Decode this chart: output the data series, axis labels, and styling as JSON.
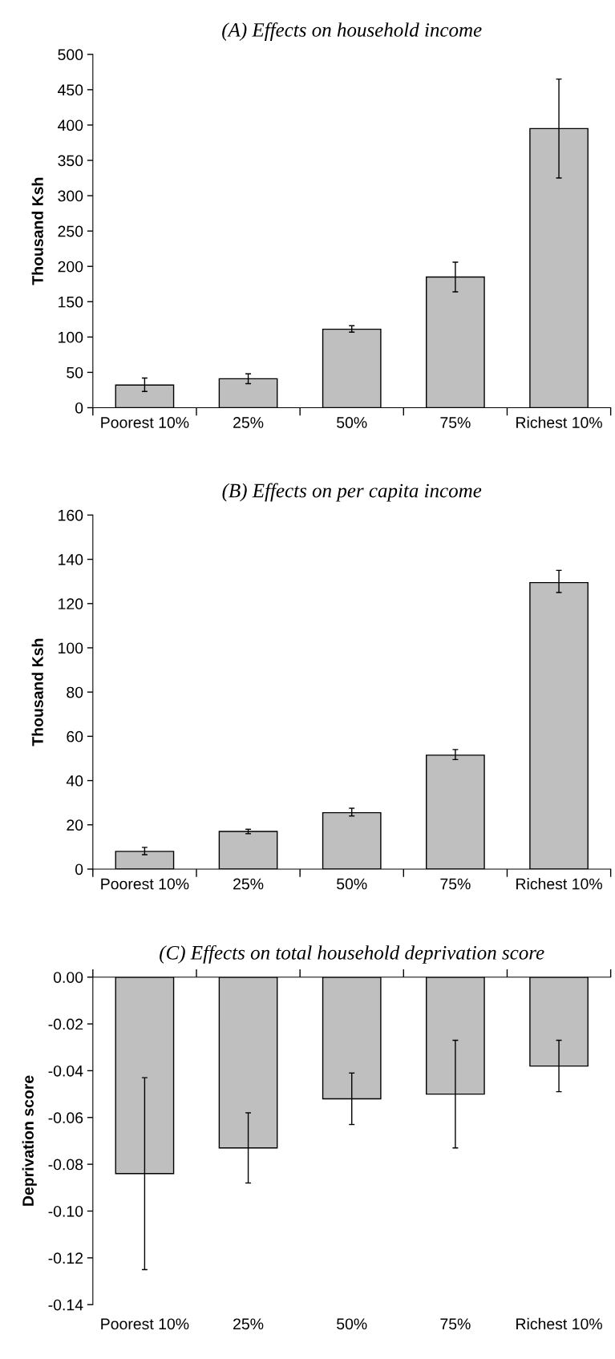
{
  "chart_data": [
    {
      "type": "bar",
      "title": "(A) Effects on household income",
      "ylabel": "Thousand Ksh",
      "categories": [
        "Poorest 10%",
        "25%",
        "50%",
        "75%",
        "Richest 10%"
      ],
      "values": [
        32,
        41,
        111,
        185,
        395
      ],
      "errors": [
        [
          23,
          42
        ],
        [
          34,
          48
        ],
        [
          107,
          116
        ],
        [
          164,
          206
        ],
        [
          325,
          465
        ]
      ],
      "color": "#bfbfbf",
      "ylim": [
        0,
        500
      ],
      "yticks": [
        0,
        50,
        100,
        150,
        200,
        250,
        300,
        350,
        400,
        450,
        500
      ]
    },
    {
      "type": "bar",
      "title": "(B) Effects on per capita income",
      "ylabel": "Thousand Ksh",
      "categories": [
        "Poorest 10%",
        "25%",
        "50%",
        "75%",
        "Richest 10%"
      ],
      "values": [
        8,
        17,
        25.5,
        51.5,
        129.5
      ],
      "errors": [
        [
          6.5,
          9.8
        ],
        [
          16,
          18
        ],
        [
          24,
          27.5
        ],
        [
          49.5,
          54
        ],
        [
          125,
          135
        ]
      ],
      "color": "#bfbfbf",
      "ylim": [
        0,
        160
      ],
      "yticks": [
        0,
        20,
        40,
        60,
        80,
        100,
        120,
        140,
        160
      ]
    },
    {
      "type": "bar",
      "title": "(C) Effects on total household deprivation score",
      "ylabel": "Deprivation score",
      "categories": [
        "Poorest 10%",
        "25%",
        "50%",
        "75%",
        "Richest 10%"
      ],
      "values": [
        -0.084,
        -0.073,
        -0.052,
        -0.05,
        -0.038
      ],
      "errors": [
        [
          -0.125,
          -0.043
        ],
        [
          -0.088,
          -0.058
        ],
        [
          -0.063,
          -0.041
        ],
        [
          -0.073,
          -0.027
        ],
        [
          -0.049,
          -0.027
        ]
      ],
      "color": "#bfbfbf",
      "ylim": [
        -0.14,
        0
      ],
      "yticks": [
        {
          "value": 0,
          "label": "0.00"
        },
        {
          "value": -0.02,
          "label": "-0.02"
        },
        {
          "value": -0.04,
          "label": "-0.04"
        },
        {
          "value": -0.06,
          "label": "-0.06"
        },
        {
          "value": -0.08,
          "label": "-0.08"
        },
        {
          "value": -0.1,
          "label": "-0.10"
        },
        {
          "value": -0.12,
          "label": "-0.12"
        },
        {
          "value": -0.14,
          "label": "-0.14"
        }
      ]
    }
  ]
}
